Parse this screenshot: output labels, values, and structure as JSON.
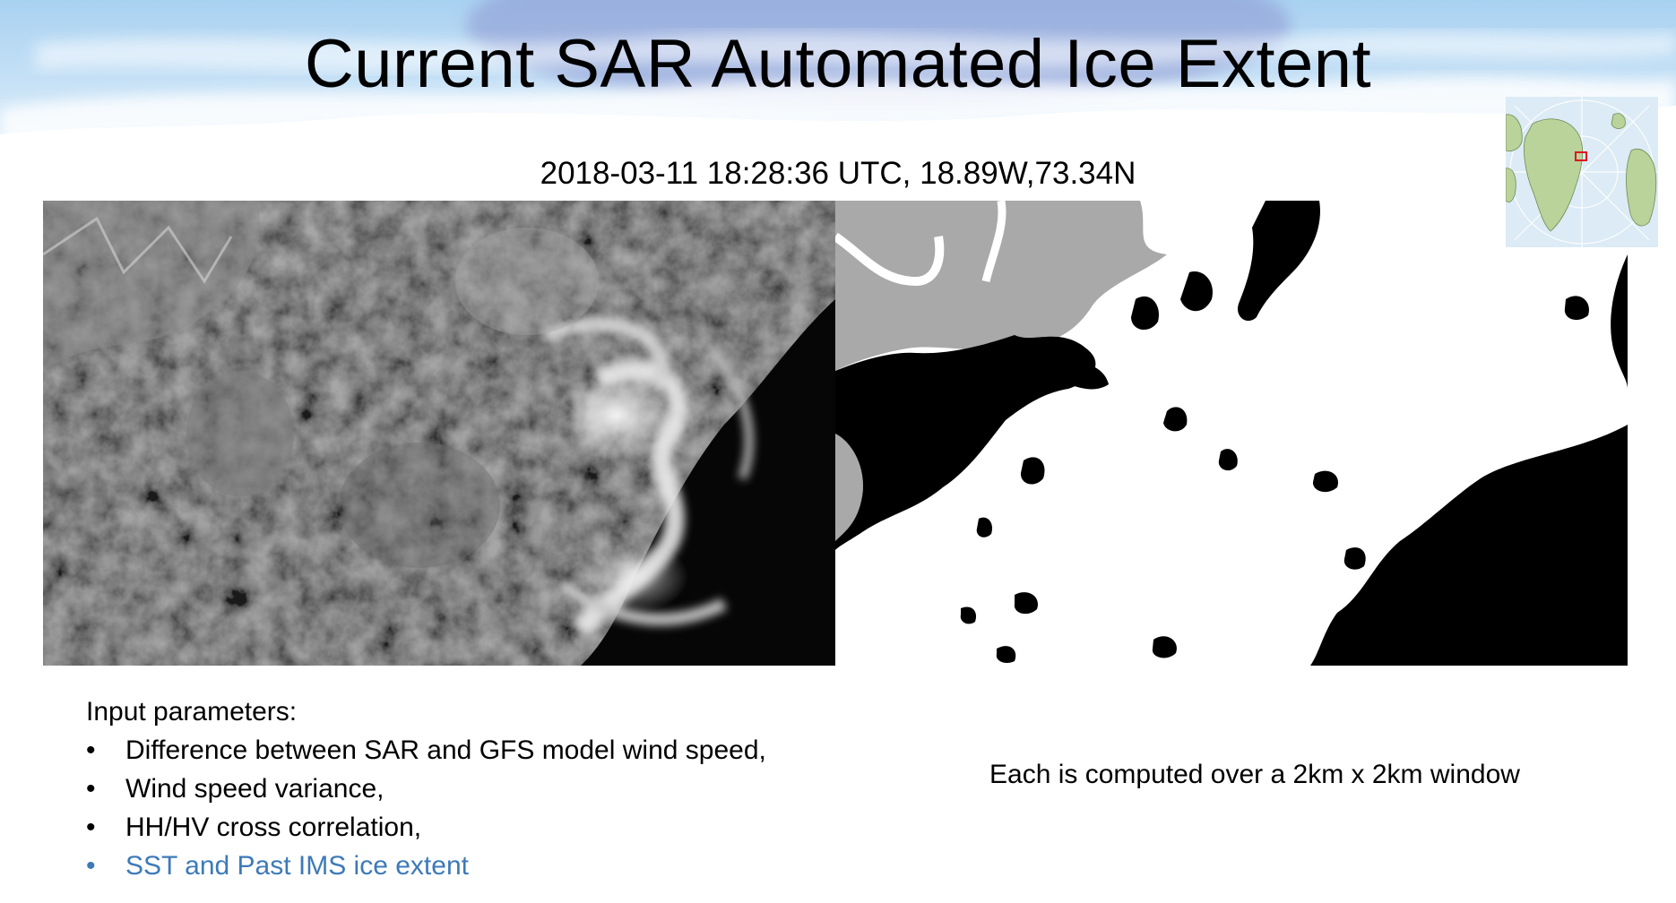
{
  "slide": {
    "title": "Current SAR Automated Ice Extent",
    "subtitle": "2018-03-11 18:28:36 UTC, 18.89W,73.34N"
  },
  "params": {
    "heading": "Input parameters:",
    "items": [
      {
        "text": "Difference between SAR and GFS model wind speed,",
        "accent": false
      },
      {
        "text": "Wind speed variance,",
        "accent": false
      },
      {
        "text": "HH/HV cross correlation,",
        "accent": false
      },
      {
        "text": "SST and Past IMS ice extent",
        "accent": true
      }
    ],
    "bullet": "•"
  },
  "note": "Each is computed over a 2km x 2km window",
  "colors": {
    "accent": "#3d7ab8",
    "header_band": "#8fc0e8",
    "land_mask": "#a9a9a9",
    "water_mask": "#000000",
    "ice_mask": "#ffffff"
  },
  "icons": {
    "inset_map": "greenland-locator-map-icon"
  }
}
